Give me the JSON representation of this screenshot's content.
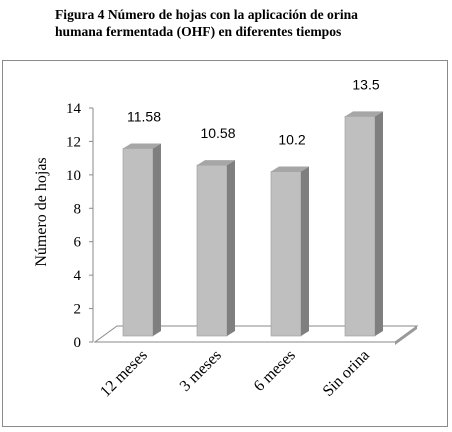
{
  "caption": {
    "line1": "Figura 4 Número de hojas con la aplicación de orina",
    "line2": "humana fermentada (OHF) en diferentes tiempos"
  },
  "chart_data": {
    "type": "bar",
    "style": "3d-column",
    "categories": [
      "12 meses",
      "3 meses",
      "6 meses",
      "Sin orina"
    ],
    "values": [
      11.58,
      10.58,
      10.2,
      13.5
    ],
    "data_labels": [
      "11.58",
      "10.58",
      "10.2",
      "13.5"
    ],
    "ylabel": "Número de hojas",
    "xlabel": "",
    "ylim": [
      0,
      14
    ],
    "yticks": [
      0,
      2,
      4,
      6,
      8,
      10,
      12,
      14
    ],
    "grid": false,
    "legend": "none",
    "colors": {
      "bar_front": "#bfbfbf",
      "bar_side": "#7f7f7f",
      "bar_top": "#a6a6a6",
      "floor": "#ffffff",
      "floor_edge": "#8a8a8a"
    }
  }
}
